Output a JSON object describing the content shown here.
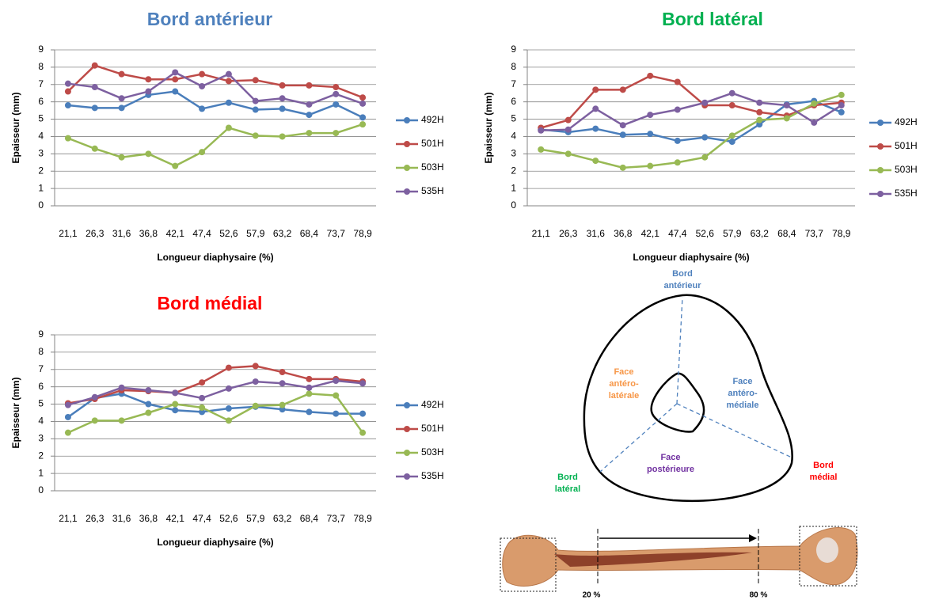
{
  "chart_data": [
    {
      "type": "line",
      "title": "Bord antérieur",
      "title_color": "#4f81bd",
      "x_label": "Longueur diaphysaire  (%)",
      "y_label": "Epaisseur  (mm)",
      "categories": [
        "21,1",
        "26,3",
        "31,6",
        "36,8",
        "42,1",
        "47,4",
        "52,6",
        "57,9",
        "63,2",
        "68,4",
        "73,7",
        "78,9"
      ],
      "ylim": [
        0,
        9
      ],
      "yticks": [
        0,
        1,
        2,
        3,
        4,
        5,
        6,
        7,
        8,
        9
      ],
      "grid": true,
      "series": [
        {
          "name": "492H",
          "color": "#4a7ebb",
          "values": [
            5.8,
            5.65,
            5.65,
            6.4,
            6.6,
            5.6,
            5.95,
            5.55,
            5.6,
            5.25,
            5.85,
            5.1
          ]
        },
        {
          "name": "501H",
          "color": "#be4b48",
          "values": [
            6.6,
            8.1,
            7.6,
            7.3,
            7.3,
            7.6,
            7.2,
            7.25,
            6.95,
            6.95,
            6.85,
            6.25
          ]
        },
        {
          "name": "503H",
          "color": "#98b954",
          "values": [
            3.9,
            3.3,
            2.8,
            3.0,
            2.3,
            3.1,
            4.5,
            4.05,
            4.0,
            4.2,
            4.2,
            4.7
          ]
        },
        {
          "name": "535H",
          "color": "#7d60a0",
          "values": [
            7.05,
            6.85,
            6.2,
            6.6,
            7.7,
            6.9,
            7.6,
            6.05,
            6.2,
            5.85,
            6.45,
            5.9
          ]
        }
      ]
    },
    {
      "type": "line",
      "title": "Bord latéral",
      "title_color": "#00b050",
      "x_label": "Longueur diaphysaire  (%)",
      "y_label": "Epaisseur  (mm)",
      "categories": [
        "21,1",
        "26,3",
        "31,6",
        "36,8",
        "42,1",
        "47,4",
        "52,6",
        "57,9",
        "63,2",
        "68,4",
        "73,7",
        "78,9"
      ],
      "ylim": [
        0,
        9
      ],
      "yticks": [
        0,
        1,
        2,
        3,
        4,
        5,
        6,
        7,
        8,
        9
      ],
      "grid": true,
      "series": [
        {
          "name": "492H",
          "color": "#4a7ebb",
          "values": [
            4.4,
            4.25,
            4.45,
            4.1,
            4.15,
            3.75,
            3.95,
            3.7,
            4.7,
            5.85,
            6.05,
            5.4
          ]
        },
        {
          "name": "501H",
          "color": "#be4b48",
          "values": [
            4.5,
            4.95,
            6.7,
            6.7,
            7.5,
            7.15,
            5.8,
            5.8,
            5.4,
            5.2,
            5.8,
            5.95
          ]
        },
        {
          "name": "503H",
          "color": "#98b954",
          "values": [
            3.25,
            3.0,
            2.6,
            2.2,
            2.3,
            2.5,
            2.8,
            4.05,
            4.95,
            5.05,
            5.9,
            6.4
          ]
        },
        {
          "name": "535H",
          "color": "#7d60a0",
          "values": [
            4.35,
            4.4,
            5.6,
            4.65,
            5.25,
            5.55,
            5.95,
            6.5,
            5.95,
            5.8,
            4.8,
            5.8
          ]
        }
      ]
    },
    {
      "type": "line",
      "title": "Bord médial",
      "title_color": "#ff0000",
      "x_label": "Longueur diaphysaire  (%)",
      "y_label": "Epaisseur  (mm)",
      "categories": [
        "21,1",
        "26,3",
        "31,6",
        "36,8",
        "42,1",
        "47,4",
        "52,6",
        "57,9",
        "63,2",
        "68,4",
        "73,7",
        "78,9"
      ],
      "ylim": [
        0,
        9
      ],
      "yticks": [
        0,
        1,
        2,
        3,
        4,
        5,
        6,
        7,
        8,
        9
      ],
      "grid": true,
      "series": [
        {
          "name": "492H",
          "color": "#4a7ebb",
          "values": [
            4.25,
            5.35,
            5.6,
            5.0,
            4.65,
            4.55,
            4.75,
            4.85,
            4.7,
            4.55,
            4.45,
            4.45
          ]
        },
        {
          "name": "501H",
          "color": "#be4b48",
          "values": [
            5.05,
            5.3,
            5.8,
            5.75,
            5.65,
            6.25,
            7.1,
            7.2,
            6.85,
            6.45,
            6.45,
            6.3
          ]
        },
        {
          "name": "503H",
          "color": "#98b954",
          "values": [
            3.35,
            4.05,
            4.05,
            4.5,
            5.0,
            4.8,
            4.05,
            4.9,
            4.95,
            5.6,
            5.5,
            3.35
          ]
        },
        {
          "name": "535H",
          "color": "#7d60a0",
          "values": [
            4.95,
            5.4,
            5.95,
            5.8,
            5.65,
            5.35,
            5.9,
            6.3,
            6.2,
            5.95,
            6.35,
            6.2
          ]
        }
      ]
    }
  ],
  "diagram": {
    "labels": [
      {
        "lines": [
          "Bord",
          "antérieur"
        ]
      },
      {
        "lines": [
          "Face",
          "antéro-",
          "latérale"
        ]
      },
      {
        "lines": [
          "Face",
          "antéro-",
          "médiale"
        ]
      },
      {
        "lines": [
          "Face",
          "postérieure"
        ]
      },
      {
        "lines": [
          "Bord",
          "latéral"
        ]
      },
      {
        "lines": [
          "Bord",
          "médial"
        ]
      }
    ]
  },
  "bone": {
    "marks": [
      "20 %",
      "80 %"
    ]
  }
}
